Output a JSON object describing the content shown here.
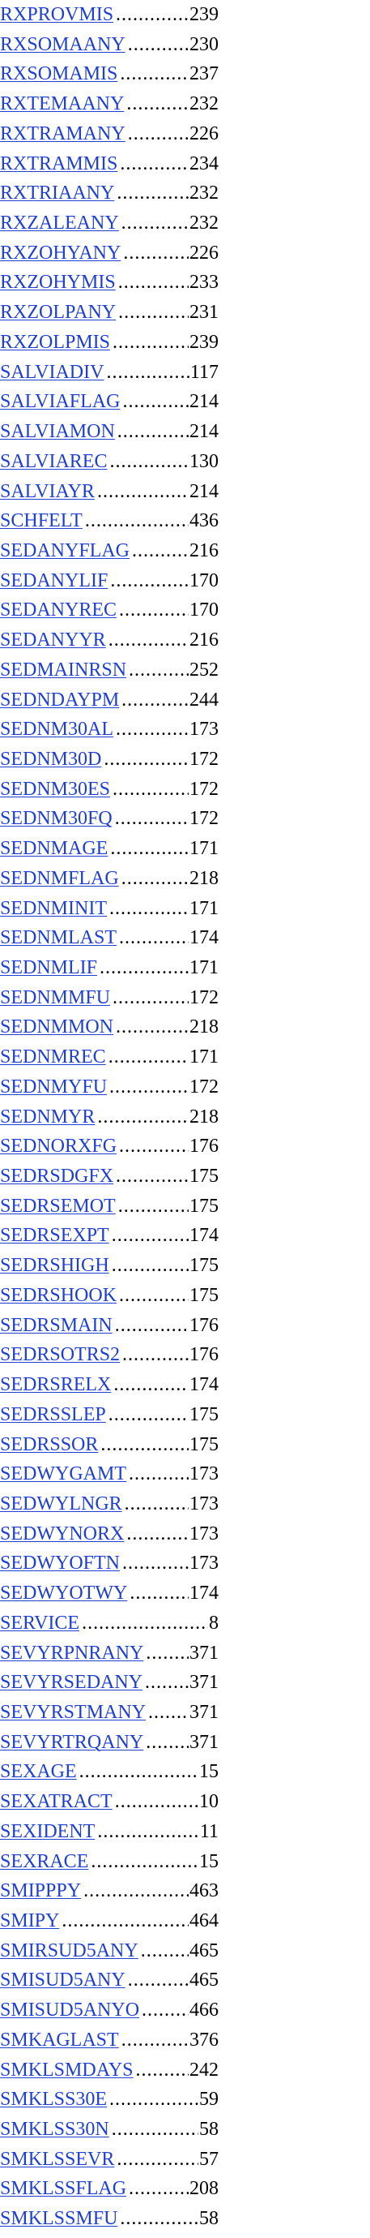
{
  "index": {
    "entries": [
      {
        "term": "RXPROVMIS",
        "page": "239"
      },
      {
        "term": "RXSOMAANY",
        "page": "230"
      },
      {
        "term": "RXSOMAMIS",
        "page": "237"
      },
      {
        "term": "RXTEMAANY",
        "page": "232"
      },
      {
        "term": "RXTRAMANY",
        "page": "226"
      },
      {
        "term": "RXTRAMMIS",
        "page": "234"
      },
      {
        "term": "RXTRIAANY",
        "page": "232"
      },
      {
        "term": "RXZALEANY",
        "page": "232"
      },
      {
        "term": "RXZOHYANY",
        "page": "226"
      },
      {
        "term": "RXZOHYMIS",
        "page": "233"
      },
      {
        "term": "RXZOLPANY",
        "page": "231"
      },
      {
        "term": "RXZOLPMIS",
        "page": "239"
      },
      {
        "term": "SALVIADIV",
        "page": "117"
      },
      {
        "term": "SALVIAFLAG",
        "page": "214"
      },
      {
        "term": "SALVIAMON",
        "page": "214"
      },
      {
        "term": "SALVIAREC",
        "page": "130"
      },
      {
        "term": "SALVIAYR",
        "page": "214"
      },
      {
        "term": "SCHFELT",
        "page": "436"
      },
      {
        "term": "SEDANYFLAG",
        "page": "216"
      },
      {
        "term": "SEDANYLIF",
        "page": "170"
      },
      {
        "term": "SEDANYREC",
        "page": "170"
      },
      {
        "term": "SEDANYYR",
        "page": "216"
      },
      {
        "term": "SEDMAINRSN",
        "page": "252"
      },
      {
        "term": "SEDNDAYPM",
        "page": "244"
      },
      {
        "term": "SEDNM30AL",
        "page": "173"
      },
      {
        "term": "SEDNM30D",
        "page": "172"
      },
      {
        "term": "SEDNM30ES",
        "page": "172"
      },
      {
        "term": "SEDNM30FQ",
        "page": "172"
      },
      {
        "term": "SEDNMAGE",
        "page": "171"
      },
      {
        "term": "SEDNMFLAG",
        "page": "218"
      },
      {
        "term": "SEDNMINIT",
        "page": "171"
      },
      {
        "term": "SEDNMLAST",
        "page": "174"
      },
      {
        "term": "SEDNMLIF",
        "page": "171"
      },
      {
        "term": "SEDNMMFU",
        "page": "172"
      },
      {
        "term": "SEDNMMON",
        "page": "218"
      },
      {
        "term": "SEDNMREC",
        "page": "171"
      },
      {
        "term": "SEDNMYFU",
        "page": "172"
      },
      {
        "term": "SEDNMYR",
        "page": "218"
      },
      {
        "term": "SEDNORXFG",
        "page": "176"
      },
      {
        "term": "SEDRSDGFX",
        "page": "175"
      },
      {
        "term": "SEDRSEMOT",
        "page": "175"
      },
      {
        "term": "SEDRSEXPT",
        "page": "174"
      },
      {
        "term": "SEDRSHIGH",
        "page": "175"
      },
      {
        "term": "SEDRSHOOK",
        "page": "175"
      },
      {
        "term": "SEDRSMAIN",
        "page": "176"
      },
      {
        "term": "SEDRSOTRS2",
        "page": "176"
      },
      {
        "term": "SEDRSRELX",
        "page": "174"
      },
      {
        "term": "SEDRSSLEP",
        "page": "175"
      },
      {
        "term": "SEDRSSOR",
        "page": "175"
      },
      {
        "term": "SEDWYGAMT",
        "page": "173"
      },
      {
        "term": "SEDWYLNGR",
        "page": "173"
      },
      {
        "term": "SEDWYNORX",
        "page": "173"
      },
      {
        "term": "SEDWYOFTN",
        "page": "173"
      },
      {
        "term": "SEDWYOTWY",
        "page": "174"
      },
      {
        "term": "SERVICE",
        "page": "8"
      },
      {
        "term": "SEVYRPNRANY",
        "page": "371"
      },
      {
        "term": "SEVYRSEDANY",
        "page": "371"
      },
      {
        "term": "SEVYRSTMANY",
        "page": "371"
      },
      {
        "term": "SEVYRTRQANY",
        "page": "371"
      },
      {
        "term": "SEXAGE",
        "page": "15"
      },
      {
        "term": "SEXATRACT",
        "page": "10"
      },
      {
        "term": "SEXIDENT",
        "page": "11"
      },
      {
        "term": "SEXRACE",
        "page": "15"
      },
      {
        "term": "SMIPPPY",
        "page": "463"
      },
      {
        "term": "SMIPY",
        "page": "464"
      },
      {
        "term": "SMIRSUD5ANY",
        "page": "465"
      },
      {
        "term": "SMISUD5ANY",
        "page": "465"
      },
      {
        "term": "SMISUD5ANYO",
        "page": "466"
      },
      {
        "term": "SMKAGLAST",
        "page": "376"
      },
      {
        "term": "SMKLSMDAYS",
        "page": "242"
      },
      {
        "term": "SMKLSS30E",
        "page": "59"
      },
      {
        "term": "SMKLSS30N",
        "page": "58"
      },
      {
        "term": "SMKLSSEVR",
        "page": "57"
      },
      {
        "term": "SMKLSSFLAG",
        "page": "208"
      },
      {
        "term": "SMKLSSMFU",
        "page": "58"
      }
    ]
  }
}
